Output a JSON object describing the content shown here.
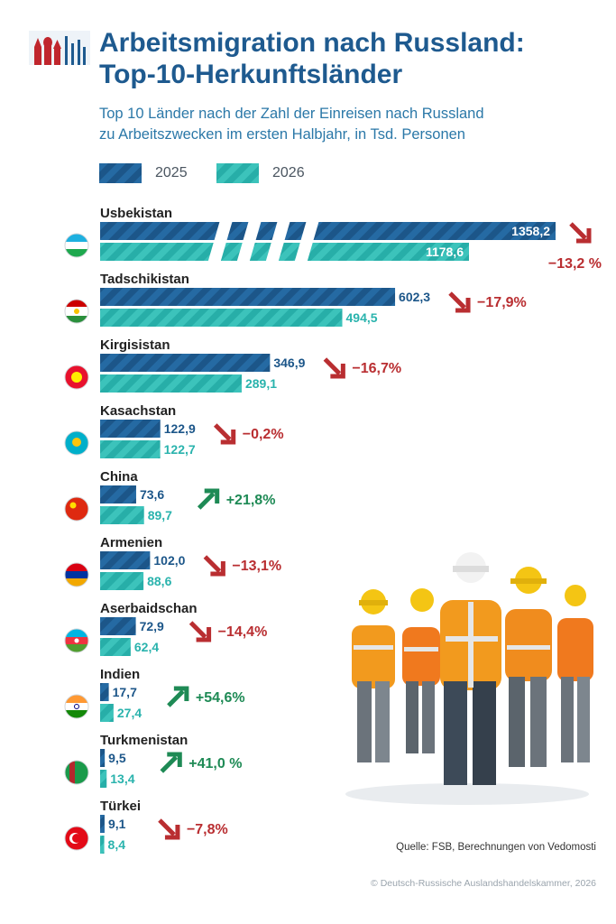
{
  "title_lines": [
    "Arbeitsmigration nach Russland:",
    "Top-10-Herkunftsländer"
  ],
  "subtitle_lines": [
    "Top 10 Länder nach der Zahl der Einreisen nach Russland",
    "zu Arbeitszwecken im ersten Halbjahr, in Tsd. Personen"
  ],
  "colors": {
    "title": "#1e5a8f",
    "bar_2025": "#1c5689",
    "bar_2026": "#2ab3ad",
    "down": "#b92e31",
    "up": "#1e8a55"
  },
  "chart_data": {
    "type": "bar",
    "orientation": "horizontal",
    "axis_break": "Usbekistan bars are drawn with a broken axis",
    "categories": [
      "Usbekistan",
      "Tadschikistan",
      "Kirgisistan",
      "Kasachstan",
      "China",
      "Armenien",
      "Aserbaidschan",
      "Indien",
      "Turkmenistan",
      "Türkei"
    ],
    "series": [
      {
        "name": "2025",
        "values": [
          1358.2,
          602.3,
          346.9,
          122.9,
          73.6,
          102.0,
          72.9,
          17.7,
          9.5,
          9.1
        ],
        "labels": [
          "1358,2",
          "602,3",
          "346,9",
          "122,9",
          "73,6",
          "102,0",
          "72,9",
          "17,7",
          "9,5",
          "9,1"
        ]
      },
      {
        "name": "2026",
        "values": [
          1178.6,
          494.5,
          289.1,
          122.7,
          89.7,
          88.6,
          62.4,
          27.4,
          13.4,
          8.4
        ],
        "labels": [
          "1178,6",
          "494,5",
          "289,1",
          "122,7",
          "89,7",
          "88,6",
          "62,4",
          "27,4",
          "13,4",
          "8,4"
        ]
      }
    ],
    "changes": [
      {
        "label": "−13,2 %",
        "value": -13.2
      },
      {
        "label": "−17,9%",
        "value": -17.9
      },
      {
        "label": "−16,7%",
        "value": -16.7
      },
      {
        "label": "−0,2%",
        "value": -0.2
      },
      {
        "label": "+21,8%",
        "value": 21.8
      },
      {
        "label": "−13,1%",
        "value": -13.1
      },
      {
        "label": "−14,4%",
        "value": -14.4
      },
      {
        "label": "+54,6%",
        "value": 54.6
      },
      {
        "label": "+41,0 %",
        "value": 41.0
      },
      {
        "label": "−7,8%",
        "value": -7.8
      }
    ],
    "flags": [
      "flag-uz",
      "flag-tj",
      "flag-kg",
      "flag-kz",
      "flag-cn",
      "flag-am",
      "flag-az",
      "flag-in",
      "flag-tm",
      "flag-tr"
    ]
  },
  "source": "Quelle: FSB, Berechnungen von Vedomosti",
  "copyright": "© Deutsch-Russische Auslandshandelskammer, 2026"
}
